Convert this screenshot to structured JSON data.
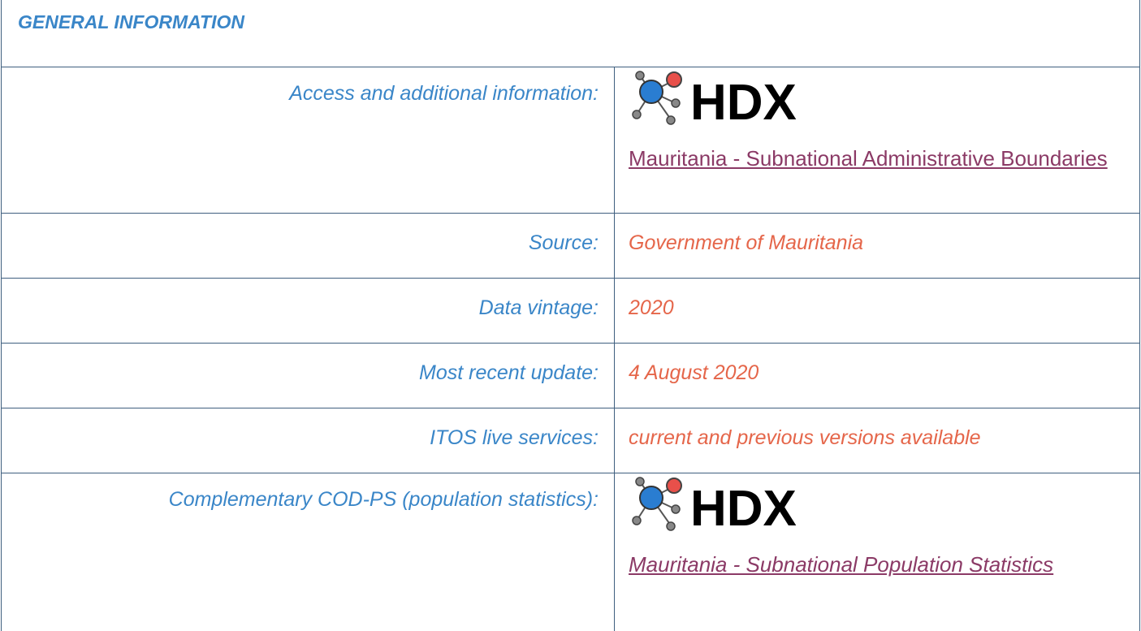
{
  "header": {
    "title": "GENERAL INFORMATION"
  },
  "table": {
    "rows": [
      {
        "label": "Access and additional information:",
        "logo": "HDX",
        "link": "Mauritania - Subnational Administrative Boundaries"
      },
      {
        "label": "Source:",
        "value": "Government of Mauritania"
      },
      {
        "label": "Data vintage:",
        "value": "2020"
      },
      {
        "label": "Most recent update:",
        "value": "4 August 2020"
      },
      {
        "label": "ITOS live services:",
        "value": "current and previous versions available"
      },
      {
        "label": "Complementary COD-PS (population statistics):",
        "logo": "HDX",
        "link": "Mauritania - Subnational Population Statistics"
      }
    ]
  }
}
